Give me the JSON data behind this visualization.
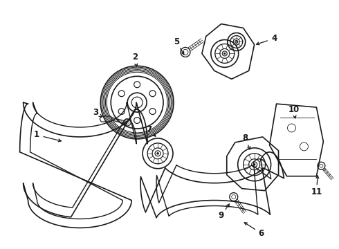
{
  "bg_color": "#ffffff",
  "line_color": "#1a1a1a",
  "lw": 1.2,
  "fig_width": 4.9,
  "fig_height": 3.6,
  "dpi": 100
}
